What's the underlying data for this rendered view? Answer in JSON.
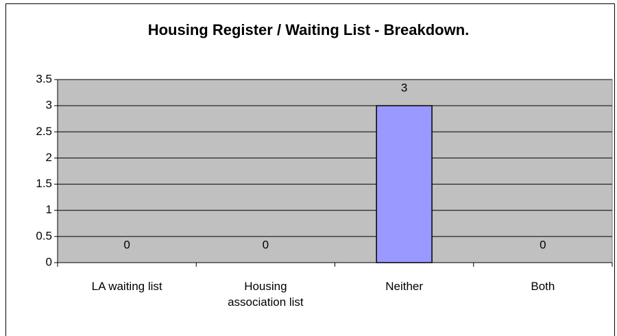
{
  "chart_data": {
    "type": "bar",
    "title": "Housing Register / Waiting List - Breakdown.",
    "categories": [
      "LA waiting list",
      "Housing association list",
      "Neither",
      "Both"
    ],
    "values": [
      0,
      0,
      3,
      0
    ],
    "color": "#9999ff",
    "ylim": [
      0,
      3.5
    ],
    "yticks": [
      0,
      0.5,
      1,
      1.5,
      2,
      2.5,
      3,
      3.5
    ],
    "grid": true
  }
}
